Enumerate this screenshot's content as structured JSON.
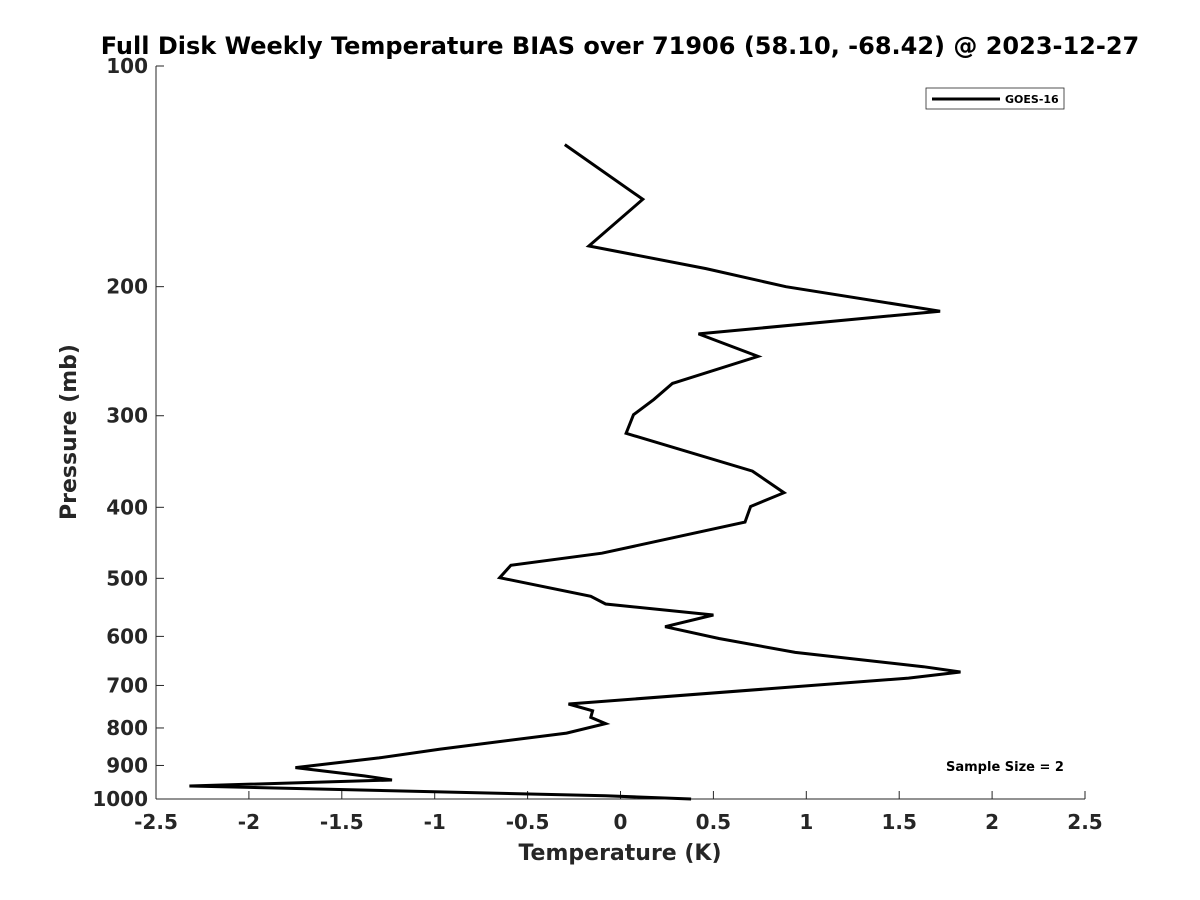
{
  "chart_data": {
    "type": "line",
    "title": "Full Disk Weekly Temperature BIAS over 71906 (58.10, -68.42) @ 2023-12-27",
    "xlabel": "Temperature (K)",
    "ylabel": "Pressure (mb)",
    "xlim": [
      -2.5,
      2.5
    ],
    "ylim": [
      1000,
      100
    ],
    "yscale": "log",
    "x_ticks": [
      -2.5,
      -2,
      -1.5,
      -1,
      -0.5,
      0,
      0.5,
      1,
      1.5,
      2,
      2.5
    ],
    "x_tick_labels": [
      "-2.5",
      "-2",
      "-1.5",
      "-1",
      "-0.5",
      "0",
      "0.5",
      "1",
      "1.5",
      "2",
      "2.5"
    ],
    "y_ticks": [
      100,
      200,
      300,
      400,
      500,
      600,
      700,
      800,
      900,
      1000
    ],
    "y_tick_labels": [
      "100",
      "200",
      "300",
      "400",
      "500",
      "600",
      "700",
      "800",
      "900",
      "1000"
    ],
    "grid": false,
    "legend_position": "top-right",
    "annotation": "Sample Size = 2",
    "series": [
      {
        "name": "GOES-16",
        "color": "#000000",
        "x": [
          -0.3,
          0.12,
          -0.17,
          0.46,
          0.89,
          1.72,
          0.42,
          0.74,
          0.28,
          0.18,
          0.07,
          0.03,
          0.71,
          0.88,
          0.7,
          0.67,
          -0.1,
          -0.59,
          -0.65,
          -0.16,
          -0.08,
          0.5,
          0.24,
          0.53,
          0.94,
          1.63,
          1.83,
          1.55,
          -0.28,
          -0.15,
          -0.16,
          -0.08,
          -0.29,
          -0.97,
          -1.3,
          -1.75,
          -1.38,
          -1.23,
          -2.32,
          -0.08,
          0.38
        ],
        "y": [
          128,
          152,
          176,
          189,
          200,
          216,
          232,
          249,
          271,
          285,
          299,
          317,
          357,
          382,
          399,
          419,
          462,
          480,
          499,
          529,
          542,
          561,
          582,
          604,
          631,
          660,
          671,
          684,
          742,
          758,
          774,
          789,
          813,
          855,
          879,
          906,
          930,
          942,
          960,
          990,
          1000
        ]
      }
    ]
  }
}
